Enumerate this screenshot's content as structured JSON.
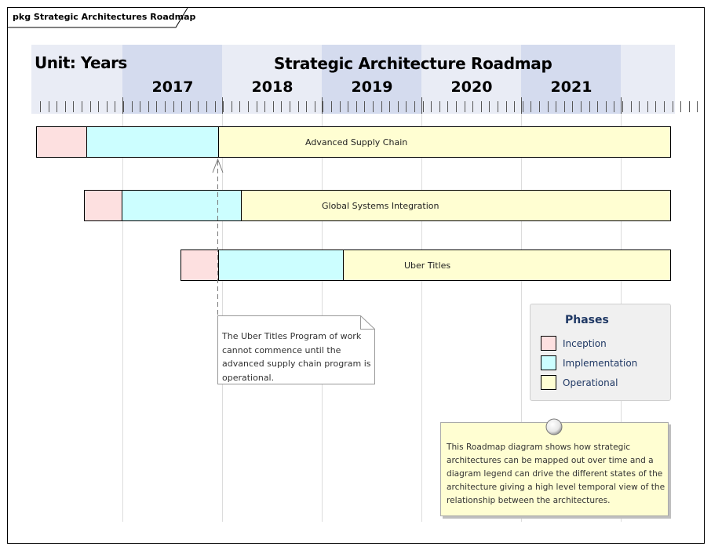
{
  "package": {
    "label": "pkg Strategic Architectures Roadmap"
  },
  "header": {
    "unit_label": "Unit: Years",
    "title": "Strategic Architecture Roadmap",
    "years": [
      "2017",
      "2018",
      "2019",
      "2020",
      "2021"
    ]
  },
  "bars": [
    {
      "label": "Advanced Supply Chain"
    },
    {
      "label": "Global Systems Integration"
    },
    {
      "label": "Uber Titles"
    }
  ],
  "notes": [
    {
      "text": "The Uber Titles Program of work cannot commence until the advanced supply chain program is operational."
    },
    {
      "text": "This Roadmap diagram shows how strategic architectures can be mapped out over time and a diagram legend can drive the different states of the architecture giving a high level temporal view of the relationship between the architectures."
    }
  ],
  "legend": {
    "title": "Phases",
    "items": [
      {
        "label": "Inception",
        "color": "#fde0e0"
      },
      {
        "label": "Implementation",
        "color": "#ccfeff"
      },
      {
        "label": "Operational",
        "color": "#fffed2"
      }
    ]
  },
  "colors": {
    "inception": "#fde0e0",
    "implementation": "#ccfeff",
    "operational": "#fffed2",
    "header_bg": "#e9ecf5",
    "header_band": "#d4dbee",
    "legend_text": "#1f3864"
  }
}
